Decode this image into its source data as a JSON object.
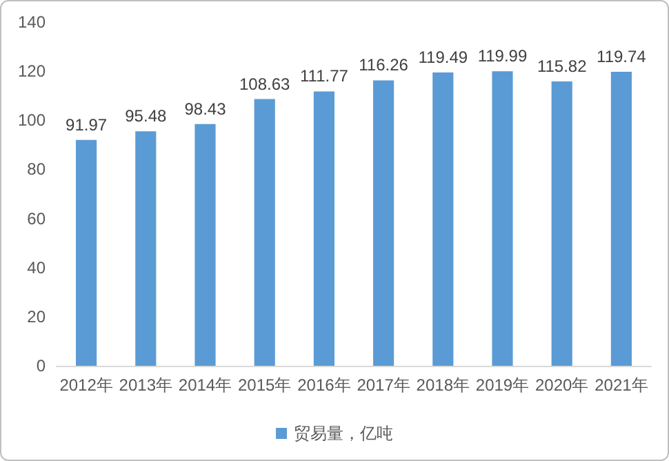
{
  "chart_data": {
    "type": "bar",
    "categories": [
      "2012年",
      "2013年",
      "2014年",
      "2015年",
      "2016年",
      "2017年",
      "2018年",
      "2019年",
      "2020年",
      "2021年"
    ],
    "series": [
      {
        "name": "贸易量，亿吨",
        "color": "#5b9bd5",
        "values": [
          91.97,
          95.48,
          98.43,
          108.63,
          111.77,
          116.26,
          119.49,
          119.99,
          115.82,
          119.74
        ]
      }
    ],
    "ylim": [
      0,
      140
    ],
    "yticks": [
      0,
      20,
      40,
      60,
      80,
      100,
      120,
      140
    ],
    "grid": false,
    "legend": "bottom",
    "data_labels": true
  }
}
